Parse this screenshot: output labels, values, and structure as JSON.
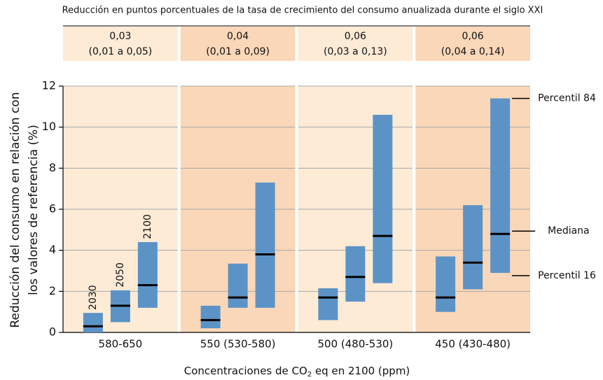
{
  "chart_data": {
    "type": "range-bar",
    "header_title": "Reducción en puntos porcentuales de la tasa de crecimiento del consumo anualizada durante el siglo XXI",
    "y_label": [
      "Reducción del consumo en relación con",
      "los valores de referencia (%)"
    ],
    "x_label": [
      "Concentraciones de CO",
      "2",
      " eq en 2100 (ppm)"
    ],
    "ylim": [
      0,
      12
    ],
    "yticks": [
      0,
      2,
      4,
      6,
      8,
      10,
      12
    ],
    "grid": true,
    "bar_color": "#5b93c7",
    "bar_labels": [
      "2030",
      "2050",
      "2100"
    ],
    "groups": [
      {
        "name": "580-650",
        "color": "#fdebd6",
        "header": [
          "0,03",
          "(0,01 a 0,05)"
        ],
        "low": [
          0,
          0.5,
          1.2
        ],
        "median": [
          0.3,
          1.3,
          2.3
        ],
        "high": [
          0.95,
          2.05,
          4.4
        ]
      },
      {
        "name": "550 (530-580)",
        "color": "#fad7b8",
        "header": [
          "0,04",
          "(0,01 a 0,09)"
        ],
        "low": [
          0.2,
          1.2,
          1.2
        ],
        "median": [
          0.6,
          1.7,
          3.8
        ],
        "high": [
          1.3,
          3.35,
          7.3
        ]
      },
      {
        "name": "500 (480-530)",
        "color": "#fdebd6",
        "header": [
          "0,06",
          "(0,03 a 0,13)"
        ],
        "low": [
          0.6,
          1.5,
          2.4
        ],
        "median": [
          1.7,
          2.7,
          4.7
        ],
        "high": [
          2.15,
          4.2,
          10.6
        ]
      },
      {
        "name": "450 (430-480)",
        "color": "#fad7b8",
        "header": [
          "0,06",
          "(0,04 a 0,14)"
        ],
        "low": [
          1.0,
          2.1,
          2.9
        ],
        "median": [
          1.7,
          3.4,
          4.8
        ],
        "high": [
          3.7,
          6.2,
          11.4
        ]
      }
    ],
    "annotations": [
      "Percentil 84",
      "Mediana",
      "Percentil 16"
    ]
  }
}
